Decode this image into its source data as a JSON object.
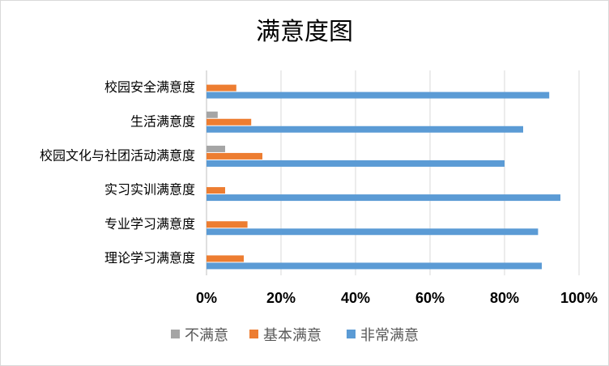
{
  "chart_data": {
    "type": "bar",
    "orientation": "horizontal",
    "title": "满意度图",
    "categories": [
      "校园安全满意度",
      "生活满意度",
      "校园文化与社团活动满意度",
      "实习实训满意度",
      "专业学习满意度",
      "理论学习满意度"
    ],
    "series": [
      {
        "name": "不满意",
        "color": "#a5a5a5",
        "values": [
          0,
          3,
          5,
          0,
          0,
          0
        ]
      },
      {
        "name": "基本满意",
        "color": "#ed7d31",
        "values": [
          8,
          12,
          15,
          5,
          11,
          10
        ]
      },
      {
        "name": "非常满意",
        "color": "#5b9bd5",
        "values": [
          92,
          85,
          80,
          95,
          89,
          90
        ]
      }
    ],
    "xlim": [
      0,
      100
    ],
    "x_ticks": [
      "0%",
      "20%",
      "40%",
      "60%",
      "80%",
      "100%"
    ],
    "grid": true,
    "legend_position": "bottom"
  }
}
